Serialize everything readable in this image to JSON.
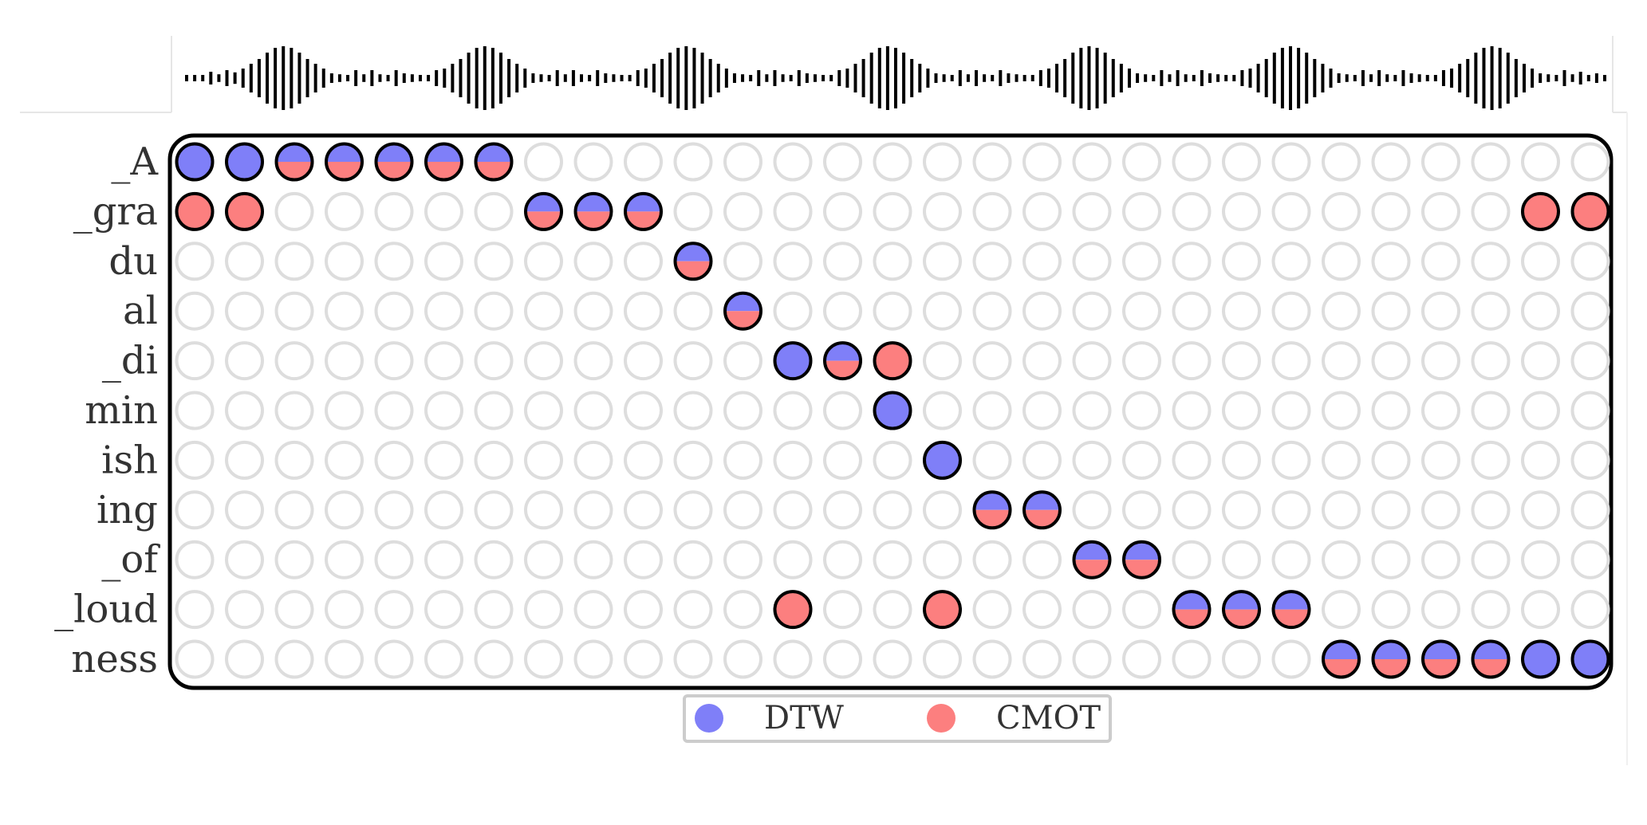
{
  "chart_data": {
    "type": "scatter",
    "subtype": "token-to-audio-frame alignment matrix",
    "rows": [
      "_A",
      "_gra",
      "du",
      "al",
      "_di",
      "min",
      "ish",
      "ing",
      "_of",
      "_loud",
      "ness"
    ],
    "num_frames": 29,
    "series": [
      {
        "name": "DTW",
        "color": "#7f7ff8",
        "alignments": [
          {
            "row": "_A",
            "frames": [
              0,
              1,
              2,
              3,
              4,
              5,
              6
            ]
          },
          {
            "row": "_gra",
            "frames": [
              7,
              8,
              9
            ]
          },
          {
            "row": "du",
            "frames": [
              10
            ]
          },
          {
            "row": "al",
            "frames": [
              11
            ]
          },
          {
            "row": "_di",
            "frames": [
              12,
              13
            ]
          },
          {
            "row": "min",
            "frames": [
              14
            ]
          },
          {
            "row": "ish",
            "frames": [
              15
            ]
          },
          {
            "row": "ing",
            "frames": [
              16,
              17
            ]
          },
          {
            "row": "_of",
            "frames": [
              18,
              19
            ]
          },
          {
            "row": "_loud",
            "frames": [
              20,
              21,
              22
            ]
          },
          {
            "row": "ness",
            "frames": [
              23,
              24,
              25,
              26,
              27,
              28
            ]
          }
        ]
      },
      {
        "name": "CMOT",
        "color": "#fc7f7f",
        "alignments": [
          {
            "row": "_A",
            "frames": [
              2,
              3,
              4,
              5,
              6
            ]
          },
          {
            "row": "_gra",
            "frames": [
              0,
              1,
              7,
              8,
              9,
              27,
              28
            ]
          },
          {
            "row": "du",
            "frames": [
              10
            ]
          },
          {
            "row": "al",
            "frames": [
              11
            ]
          },
          {
            "row": "_di",
            "frames": [
              13,
              14
            ]
          },
          {
            "row": "ing",
            "frames": [
              16,
              17
            ]
          },
          {
            "row": "_of",
            "frames": [
              18,
              19
            ]
          },
          {
            "row": "_loud",
            "frames": [
              12,
              15,
              20,
              21,
              22
            ]
          },
          {
            "row": "ness",
            "frames": [
              23,
              24,
              25,
              26
            ]
          }
        ]
      }
    ],
    "waveform": {
      "bursts": 7,
      "amplitude": [
        0.1,
        0.1,
        0.1,
        0.2,
        0.12,
        0.25,
        0.18,
        0.3,
        0.45,
        0.6,
        0.8,
        0.95,
        1.0,
        0.95,
        0.8,
        0.6,
        0.45,
        0.3,
        0.15,
        0.12,
        0.1,
        0.25,
        0.12,
        0.25,
        0.12,
        0.1,
        0.25,
        0.15,
        0.12,
        0.1,
        0.1,
        0.25,
        0.3,
        0.45,
        0.6,
        0.8,
        0.95,
        1.0,
        0.95,
        0.8,
        0.6,
        0.45,
        0.3,
        0.15,
        0.12,
        0.1,
        0.25,
        0.12,
        0.25,
        0.12,
        0.1,
        0.25,
        0.15,
        0.12,
        0.1,
        0.1,
        0.25,
        0.3,
        0.45,
        0.6,
        0.8,
        0.95,
        1.0,
        0.95,
        0.8,
        0.6,
        0.45,
        0.3,
        0.15,
        0.12,
        0.1,
        0.25,
        0.12,
        0.25,
        0.12,
        0.1,
        0.25,
        0.15,
        0.12,
        0.1,
        0.1,
        0.25,
        0.3,
        0.45,
        0.6,
        0.8,
        0.95,
        1.0,
        0.95,
        0.8,
        0.6,
        0.45,
        0.3,
        0.15,
        0.12,
        0.1,
        0.25,
        0.12,
        0.25,
        0.12,
        0.1,
        0.25,
        0.15,
        0.12,
        0.1,
        0.1,
        0.25,
        0.3,
        0.45,
        0.6,
        0.8,
        0.95,
        1.0,
        0.95,
        0.8,
        0.6,
        0.45,
        0.3,
        0.15,
        0.12,
        0.1,
        0.25,
        0.12,
        0.25,
        0.12,
        0.1,
        0.25,
        0.15,
        0.12,
        0.1,
        0.1,
        0.25,
        0.3,
        0.45,
        0.6,
        0.8,
        0.95,
        1.0,
        0.95,
        0.8,
        0.6,
        0.45,
        0.3,
        0.15,
        0.12,
        0.1,
        0.25,
        0.12,
        0.25,
        0.12,
        0.1,
        0.25,
        0.15,
        0.12,
        0.1,
        0.1,
        0.25,
        0.3,
        0.45,
        0.6,
        0.8,
        0.95,
        1.0,
        0.95,
        0.8,
        0.6,
        0.45,
        0.3,
        0.15,
        0.12,
        0.1,
        0.25,
        0.12,
        0.2,
        0.1,
        0.15,
        0.1
      ]
    },
    "legend": {
      "placement": "bottom-center",
      "entries": [
        "DTW",
        "CMOT"
      ]
    },
    "title": "",
    "xlabel": "",
    "ylabel": ""
  }
}
